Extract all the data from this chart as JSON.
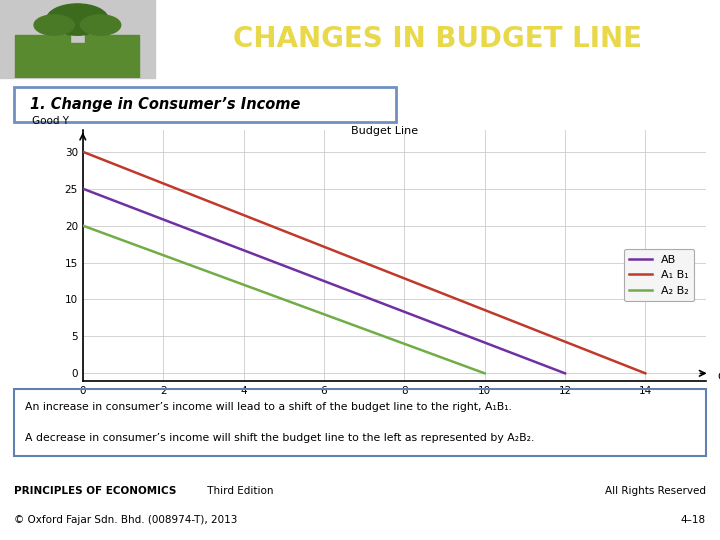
{
  "title": "CHANGES IN BUDGET LINE",
  "subtitle": "1. Change in Consumer’s Income",
  "header_bg": "#6b8c35",
  "header_text_color": "#e8d84a",
  "subtitle_bg": "#d6e4f7",
  "subtitle_border": "#7090c0",
  "graph_title": "Budget Line",
  "x_label": "Good X",
  "y_label": "Good Y",
  "x_ticks": [
    0,
    2,
    4,
    6,
    8,
    10,
    12,
    14
  ],
  "y_ticks": [
    0,
    5,
    10,
    15,
    20,
    25,
    30
  ],
  "xlim": [
    0,
    15.5
  ],
  "ylim": [
    -1,
    33
  ],
  "lines": [
    {
      "label": "AB",
      "x": [
        0,
        12
      ],
      "y": [
        25,
        0
      ],
      "color": "#7030a0",
      "lw": 1.8
    },
    {
      "label": "A₁ B₁",
      "x": [
        0,
        14
      ],
      "y": [
        30,
        0
      ],
      "color": "#c0392b",
      "lw": 1.8
    },
    {
      "label": "A₂ B₂",
      "x": [
        0,
        10
      ],
      "y": [
        20,
        0
      ],
      "color": "#70ad47",
      "lw": 1.8
    }
  ],
  "note_line1": "An increase in consumer’s income will lead to a shift of the budget line to the right, A₁B₁.",
  "note_line2": "A decrease in consumer’s income will shift the budget line to the left as represented by A₂B₂.",
  "bg_color": "#ffffff",
  "grid_color": "#cccccc",
  "puzzle_bg": "#c0c0c0",
  "puzzle_green": "#5a8a30"
}
